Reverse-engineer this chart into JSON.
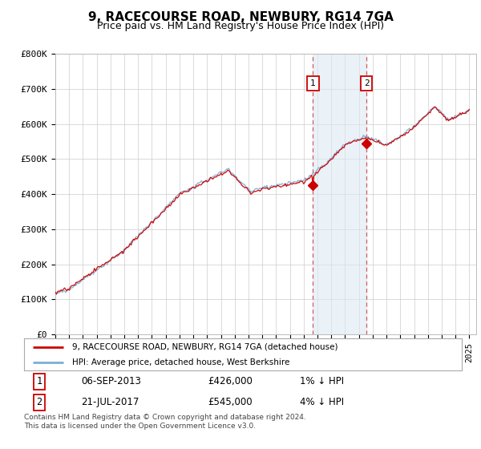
{
  "title": "9, RACECOURSE ROAD, NEWBURY, RG14 7GA",
  "subtitle": "Price paid vs. HM Land Registry's House Price Index (HPI)",
  "legend_line1": "9, RACECOURSE ROAD, NEWBURY, RG14 7GA (detached house)",
  "legend_line2": "HPI: Average price, detached house, West Berkshire",
  "sale1_date": "06-SEP-2013",
  "sale1_price": "£426,000",
  "sale1_hpi": "1% ↓ HPI",
  "sale1_year": 2013.67,
  "sale1_value": 426000,
  "sale2_date": "21-JUL-2017",
  "sale2_price": "£545,000",
  "sale2_hpi": "4% ↓ HPI",
  "sale2_year": 2017.55,
  "sale2_value": 545000,
  "footnote": "Contains HM Land Registry data © Crown copyright and database right 2024.\nThis data is licensed under the Open Government Licence v3.0.",
  "line_color_red": "#cc0000",
  "line_color_blue": "#7bafd4",
  "shade_color": "#dce8f3",
  "shade_alpha": 0.6,
  "background_color": "#ffffff",
  "ylim": [
    0,
    800000
  ],
  "xlim_start": 1995,
  "xlim_end": 2025.5,
  "title_fontsize": 11,
  "subtitle_fontsize": 9,
  "tick_fontsize": 7.5,
  "legend_fontsize": 7.5,
  "table_fontsize": 8.5,
  "footnote_fontsize": 6.5,
  "box_edge_color": "#cc0000",
  "dashed_line_color": "#cc4444"
}
